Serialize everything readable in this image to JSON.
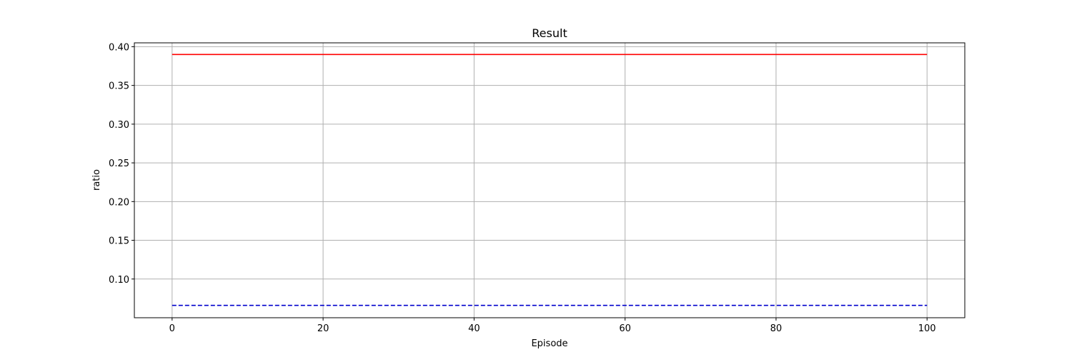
{
  "chart_data": {
    "type": "line",
    "title": "Result",
    "xlabel": "Episode",
    "ylabel": "ratio",
    "xlim": [
      -5,
      105
    ],
    "ylim": [
      0.05,
      0.405
    ],
    "xticks": [
      0,
      20,
      40,
      60,
      80,
      100
    ],
    "xtick_labels": [
      "0",
      "20",
      "40",
      "60",
      "80",
      "100"
    ],
    "yticks": [
      0.1,
      0.15,
      0.2,
      0.25,
      0.3,
      0.35,
      0.4
    ],
    "ytick_labels": [
      "0.10",
      "0.15",
      "0.20",
      "0.25",
      "0.30",
      "0.35",
      "0.40"
    ],
    "grid": true,
    "legend": "none",
    "series": [
      {
        "color": "#ff0000",
        "style": "solid",
        "x": [
          0,
          100
        ],
        "y": [
          0.39,
          0.39
        ]
      },
      {
        "color": "#0000cc",
        "style": "dashed",
        "x": [
          0,
          100
        ],
        "y": [
          0.066,
          0.066
        ]
      }
    ]
  }
}
